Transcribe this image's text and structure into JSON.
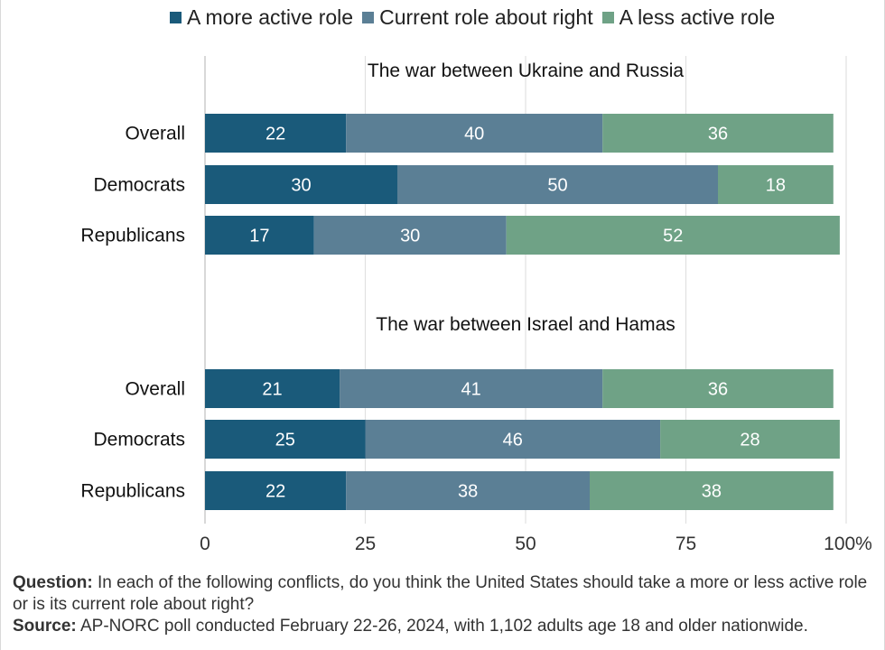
{
  "legend": [
    {
      "label": "A more active role",
      "color": "#1a5a7a"
    },
    {
      "label": "Current role about right",
      "color": "#5b7f95"
    },
    {
      "label": "A less active role",
      "color": "#6fa286"
    }
  ],
  "chart_data": {
    "type": "bar",
    "orientation": "horizontal",
    "stacked": true,
    "xlim": [
      0,
      100
    ],
    "xticks": [
      "0",
      "25",
      "50",
      "75",
      "100%"
    ],
    "grid": true,
    "legend_position": "top",
    "series_names": [
      "A more active role",
      "Current role about right",
      "A less active role"
    ],
    "panels": [
      {
        "title": "The war between Ukraine and Russia",
        "rows": [
          {
            "label": "Overall",
            "values": [
              22,
              40,
              36
            ]
          },
          {
            "label": "Democrats",
            "values": [
              30,
              50,
              18
            ]
          },
          {
            "label": "Republicans",
            "values": [
              17,
              30,
              52
            ]
          }
        ]
      },
      {
        "title": "The war between Israel and Hamas",
        "rows": [
          {
            "label": "Overall",
            "values": [
              21,
              41,
              36
            ]
          },
          {
            "label": "Democrats",
            "values": [
              25,
              46,
              28
            ]
          },
          {
            "label": "Republicans",
            "values": [
              22,
              38,
              38
            ]
          }
        ]
      }
    ]
  },
  "notes": {
    "question_label": "Question:",
    "question_text": " In each of the following conflicts, do you think the United States should take a more or less active role or is its current role about right?",
    "source_label": "Source:",
    "source_text": " AP-NORC poll conducted February 22-26, 2024, with 1,102 adults age 18 and older nationwide."
  }
}
